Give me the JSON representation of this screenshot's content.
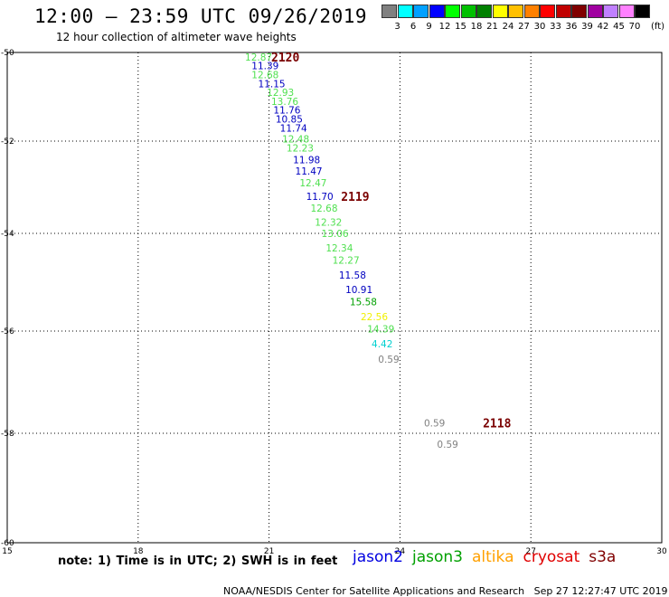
{
  "header": {
    "title": "12:00 – 23:59 UTC 09/26/2019",
    "subtitle": "12 hour collection of altimeter wave heights"
  },
  "colorbar": {
    "unit": "(ft)",
    "bins": [
      {
        "label": "3",
        "color": "#808080"
      },
      {
        "label": "6",
        "color": "#00ffff"
      },
      {
        "label": "9",
        "color": "#00a0ff"
      },
      {
        "label": "12",
        "color": "#0000ff"
      },
      {
        "label": "15",
        "color": "#00ff00"
      },
      {
        "label": "18",
        "color": "#00c000"
      },
      {
        "label": "21",
        "color": "#008000"
      },
      {
        "label": "24",
        "color": "#ffff00"
      },
      {
        "label": "27",
        "color": "#ffc000"
      },
      {
        "label": "30",
        "color": "#ff8000"
      },
      {
        "label": "33",
        "color": "#ff0000"
      },
      {
        "label": "36",
        "color": "#c00000"
      },
      {
        "label": "39",
        "color": "#800000"
      },
      {
        "label": "42",
        "color": "#a000a0"
      },
      {
        "label": "45",
        "color": "#c080ff"
      },
      {
        "label": "70",
        "color": "#ff80ff"
      },
      {
        "label": "",
        "color": "#000000"
      }
    ]
  },
  "chart_data": {
    "type": "scatter",
    "title": "12:00 – 23:59 UTC 09/26/2019",
    "xlim": [
      15,
      30
    ],
    "ylim": [
      -60,
      -50
    ],
    "xticks": [
      "15",
      "18",
      "21",
      "24",
      "27",
      "30"
    ],
    "yticks": [
      "-50",
      "-52",
      "-54",
      "-56",
      "-58",
      "-60"
    ],
    "grid": true,
    "points": [
      {
        "lon": 20.45,
        "lat": -50.1,
        "swh": "12.87",
        "color": "#50e050"
      },
      {
        "lon": 20.6,
        "lat": -50.3,
        "swh": "11.39",
        "color": "#0000c0"
      },
      {
        "lon": 20.6,
        "lat": -50.5,
        "swh": "12.68",
        "color": "#50e050"
      },
      {
        "lon": 20.75,
        "lat": -50.7,
        "swh": "11.15",
        "color": "#0000c0"
      },
      {
        "lon": 20.95,
        "lat": -50.9,
        "swh": "12.93",
        "color": "#50e050"
      },
      {
        "lon": 21.05,
        "lat": -51.1,
        "swh": "13.76",
        "color": "#50e050"
      },
      {
        "lon": 21.1,
        "lat": -51.3,
        "swh": "11.76",
        "color": "#0000c0"
      },
      {
        "lon": 21.15,
        "lat": -51.5,
        "swh": "10.85",
        "color": "#0000c0"
      },
      {
        "lon": 21.25,
        "lat": -51.7,
        "swh": "11.74",
        "color": "#0000c0"
      },
      {
        "lon": 21.3,
        "lat": -51.95,
        "swh": "12.48",
        "color": "#50e050"
      },
      {
        "lon": 21.4,
        "lat": -52.15,
        "swh": "12.23",
        "color": "#50e050"
      },
      {
        "lon": 21.55,
        "lat": -52.4,
        "swh": "11.98",
        "color": "#0000c0"
      },
      {
        "lon": 21.6,
        "lat": -52.65,
        "swh": "11.47",
        "color": "#0000c0"
      },
      {
        "lon": 21.7,
        "lat": -52.9,
        "swh": "12.47",
        "color": "#50e050"
      },
      {
        "lon": 21.85,
        "lat": -53.2,
        "swh": "11.70",
        "color": "#0000c0"
      },
      {
        "lon": 21.95,
        "lat": -53.45,
        "swh": "12.68",
        "color": "#50e050"
      },
      {
        "lon": 22.05,
        "lat": -53.75,
        "swh": "12.32",
        "color": "#50e050"
      },
      {
        "lon": 22.2,
        "lat": -54.0,
        "swh": "13.06",
        "color": "#50e050"
      },
      {
        "lon": 22.3,
        "lat": -54.3,
        "swh": "12.34",
        "color": "#50e050"
      },
      {
        "lon": 22.45,
        "lat": -54.55,
        "swh": "12.27",
        "color": "#50e050"
      },
      {
        "lon": 22.6,
        "lat": -54.85,
        "swh": "11.58",
        "color": "#0000c0"
      },
      {
        "lon": 22.75,
        "lat": -55.15,
        "swh": "10.91",
        "color": "#0000c0"
      },
      {
        "lon": 22.85,
        "lat": -55.4,
        "swh": "15.58",
        "color": "#00a000"
      },
      {
        "lon": 23.1,
        "lat": -55.7,
        "swh": "22.56",
        "color": "#f0f000"
      },
      {
        "lon": 23.25,
        "lat": -55.95,
        "swh": "14.39",
        "color": "#50e050"
      },
      {
        "lon": 23.35,
        "lat": -56.25,
        "swh": "4.42",
        "color": "#00d0d0"
      },
      {
        "lon": 23.5,
        "lat": -56.55,
        "swh": "0.59",
        "color": "#808080"
      },
      {
        "lon": 24.55,
        "lat": -57.8,
        "swh": "0.59",
        "color": "#808080"
      },
      {
        "lon": 24.85,
        "lat": -58.2,
        "swh": "0.59",
        "color": "#808080"
      }
    ],
    "pass_labels": [
      {
        "lon": 21.05,
        "lat": -50.1,
        "text": "2120"
      },
      {
        "lon": 22.65,
        "lat": -53.2,
        "text": "2119"
      },
      {
        "lon": 25.9,
        "lat": -57.8,
        "text": "2118"
      }
    ]
  },
  "footer": {
    "note": "note: 1) Time is in UTC; 2) SWH is in feet",
    "missions": [
      {
        "name": "jason2",
        "color": "#0000e0"
      },
      {
        "name": "jason3",
        "color": "#00a000"
      },
      {
        "name": "altika",
        "color": "#ffa000"
      },
      {
        "name": "cryosat",
        "color": "#e00000"
      },
      {
        "name": "s3a",
        "color": "#800000"
      }
    ],
    "credit": "NOAA/NESDIS Center for Satellite Applications and Research",
    "timestamp": "Sep 27 12:27:47 UTC 2019"
  }
}
